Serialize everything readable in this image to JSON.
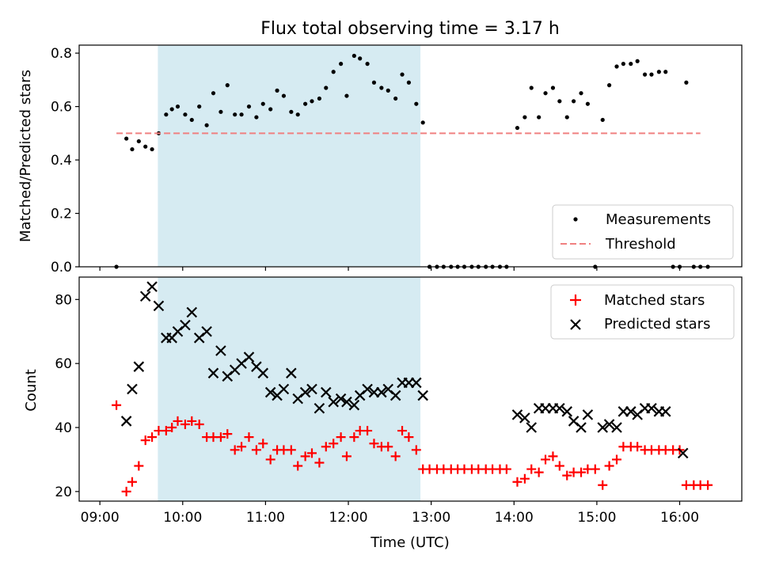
{
  "chart_data": {
    "type": "scatter",
    "title": "Flux total observing time = 3.17 h",
    "xlabel": "Time (UTC)",
    "x_unit": "hours UTC",
    "xlim": [
      8.75,
      16.75
    ],
    "xticks": [
      {
        "value": 9,
        "label": "09:00"
      },
      {
        "value": 10,
        "label": "10:00"
      },
      {
        "value": 11,
        "label": "11:00"
      },
      {
        "value": 12,
        "label": "12:00"
      },
      {
        "value": 13,
        "label": "13:00"
      },
      {
        "value": 14,
        "label": "14:00"
      },
      {
        "value": 15,
        "label": "15:00"
      },
      {
        "value": 16,
        "label": "16:00"
      }
    ],
    "highlight_span": [
      9.7,
      12.87
    ],
    "highlight_color": "#add8e6",
    "top_panel": {
      "ylabel": "Matched/Predicted stars",
      "ylim": [
        0.0,
        0.83
      ],
      "yticks": [
        {
          "value": 0.0,
          "label": "0.0"
        },
        {
          "value": 0.2,
          "label": "0.2"
        },
        {
          "value": 0.4,
          "label": "0.4"
        },
        {
          "value": 0.6,
          "label": "0.6"
        },
        {
          "value": 0.8,
          "label": "0.8"
        }
      ],
      "legend_position": "lower-right",
      "series": [
        {
          "name": "Measurements",
          "marker": "dot",
          "color": "#000000",
          "x": [
            9.2,
            9.32,
            9.39,
            9.47,
            9.55,
            9.63,
            9.71,
            9.8,
            9.87,
            9.94,
            10.03,
            10.11,
            10.2,
            10.29,
            10.37,
            10.46,
            10.54,
            10.63,
            10.71,
            10.8,
            10.89,
            10.97,
            11.06,
            11.14,
            11.22,
            11.31,
            11.39,
            11.48,
            11.56,
            11.65,
            11.73,
            11.82,
            11.91,
            11.98,
            12.07,
            12.14,
            12.23,
            12.31,
            12.4,
            12.48,
            12.57,
            12.65,
            12.73,
            12.82,
            12.9,
            12.98,
            13.07,
            13.15,
            13.24,
            13.32,
            13.4,
            13.49,
            13.57,
            13.66,
            13.74,
            13.83,
            13.91,
            14.04,
            14.13,
            14.21,
            14.3,
            14.38,
            14.47,
            14.55,
            14.64,
            14.72,
            14.81,
            14.89,
            14.98,
            15.07,
            15.15,
            15.24,
            15.32,
            15.41,
            15.49,
            15.58,
            15.66,
            15.75,
            15.83,
            15.92,
            16.0,
            16.08,
            16.17,
            16.25,
            16.34
          ],
          "y": [
            0.0,
            0.48,
            0.44,
            0.47,
            0.45,
            0.44,
            0.5,
            0.57,
            0.59,
            0.6,
            0.57,
            0.55,
            0.6,
            0.53,
            0.65,
            0.58,
            0.68,
            0.57,
            0.57,
            0.6,
            0.56,
            0.61,
            0.59,
            0.66,
            0.64,
            0.58,
            0.57,
            0.61,
            0.62,
            0.63,
            0.67,
            0.73,
            0.76,
            0.64,
            0.79,
            0.78,
            0.76,
            0.69,
            0.67,
            0.66,
            0.63,
            0.72,
            0.69,
            0.61,
            0.54,
            0.0,
            0.0,
            0.0,
            0.0,
            0.0,
            0.0,
            0.0,
            0.0,
            0.0,
            0.0,
            0.0,
            0.0,
            0.52,
            0.56,
            0.67,
            0.56,
            0.65,
            0.67,
            0.62,
            0.56,
            0.62,
            0.65,
            0.61,
            0.0,
            0.55,
            0.68,
            0.75,
            0.76,
            0.76,
            0.77,
            0.72,
            0.72,
            0.73,
            0.73,
            0.0,
            0.0,
            0.69,
            0.0,
            0.0,
            0.0
          ]
        },
        {
          "name": "Threshold",
          "style": "dashed",
          "color": "#f08080",
          "x": [
            9.2,
            16.25
          ],
          "y": [
            0.5,
            0.5
          ]
        }
      ]
    },
    "bottom_panel": {
      "ylabel": "Count",
      "ylim": [
        17,
        87
      ],
      "yticks": [
        {
          "value": 20,
          "label": "20"
        },
        {
          "value": 40,
          "label": "40"
        },
        {
          "value": 60,
          "label": "60"
        },
        {
          "value": 80,
          "label": "80"
        }
      ],
      "legend_position": "upper-right",
      "series": [
        {
          "name": "Matched stars",
          "marker": "plus",
          "color": "#ff0000",
          "x": [
            9.2,
            9.32,
            9.39,
            9.47,
            9.55,
            9.63,
            9.71,
            9.8,
            9.87,
            9.94,
            10.03,
            10.11,
            10.2,
            10.29,
            10.37,
            10.46,
            10.54,
            10.63,
            10.71,
            10.8,
            10.89,
            10.97,
            11.06,
            11.14,
            11.22,
            11.31,
            11.39,
            11.48,
            11.56,
            11.65,
            11.73,
            11.82,
            11.91,
            11.98,
            12.07,
            12.14,
            12.23,
            12.31,
            12.4,
            12.48,
            12.57,
            12.65,
            12.73,
            12.82,
            12.9,
            12.98,
            13.07,
            13.15,
            13.24,
            13.32,
            13.4,
            13.49,
            13.57,
            13.66,
            13.74,
            13.83,
            13.91,
            14.04,
            14.13,
            14.21,
            14.3,
            14.38,
            14.47,
            14.55,
            14.64,
            14.72,
            14.81,
            14.89,
            14.98,
            15.07,
            15.15,
            15.24,
            15.32,
            15.41,
            15.49,
            15.58,
            15.66,
            15.75,
            15.83,
            15.92,
            16.0,
            16.08,
            16.17,
            16.25,
            16.34
          ],
          "y": [
            47,
            20,
            23,
            28,
            36,
            37,
            39,
            39,
            40,
            42,
            41,
            42,
            41,
            37,
            37,
            37,
            38,
            33,
            34,
            37,
            33,
            35,
            30,
            33,
            33,
            33,
            28,
            31,
            32,
            29,
            34,
            35,
            37,
            31,
            37,
            39,
            39,
            35,
            34,
            34,
            31,
            39,
            37,
            33,
            27,
            27,
            27,
            27,
            27,
            27,
            27,
            27,
            27,
            27,
            27,
            27,
            27,
            23,
            24,
            27,
            26,
            30,
            31,
            28,
            25,
            26,
            26,
            27,
            27,
            22,
            28,
            30,
            34,
            34,
            34,
            33,
            33,
            33,
            33,
            33,
            33,
            22,
            22,
            22,
            22
          ]
        },
        {
          "name": "Predicted stars",
          "marker": "x",
          "color": "#000000",
          "x": [
            9.32,
            9.39,
            9.47,
            9.55,
            9.63,
            9.71,
            9.8,
            9.87,
            9.94,
            10.03,
            10.11,
            10.2,
            10.29,
            10.37,
            10.46,
            10.54,
            10.63,
            10.71,
            10.8,
            10.89,
            10.97,
            11.06,
            11.14,
            11.22,
            11.31,
            11.39,
            11.48,
            11.56,
            11.65,
            11.73,
            11.82,
            11.91,
            11.98,
            12.07,
            12.14,
            12.23,
            12.31,
            12.4,
            12.48,
            12.57,
            12.65,
            12.73,
            12.82,
            12.9,
            14.04,
            14.13,
            14.21,
            14.3,
            14.38,
            14.47,
            14.55,
            14.64,
            14.72,
            14.81,
            14.89,
            15.07,
            15.15,
            15.24,
            15.32,
            15.41,
            15.49,
            15.58,
            15.66,
            15.75,
            15.83,
            16.04
          ],
          "y": [
            42,
            52,
            59,
            81,
            84,
            78,
            68,
            68,
            70,
            72,
            76,
            68,
            70,
            57,
            64,
            56,
            58,
            60,
            62,
            59,
            57,
            51,
            50,
            52,
            57,
            49,
            51,
            52,
            46,
            51,
            48,
            49,
            48,
            47,
            50,
            52,
            51,
            51,
            52,
            50,
            54,
            54,
            54,
            50,
            44,
            43,
            40,
            46,
            46,
            46,
            46,
            45,
            42,
            40,
            44,
            40,
            41,
            40,
            45,
            45,
            44,
            46,
            46,
            45,
            45,
            32
          ]
        }
      ]
    }
  }
}
